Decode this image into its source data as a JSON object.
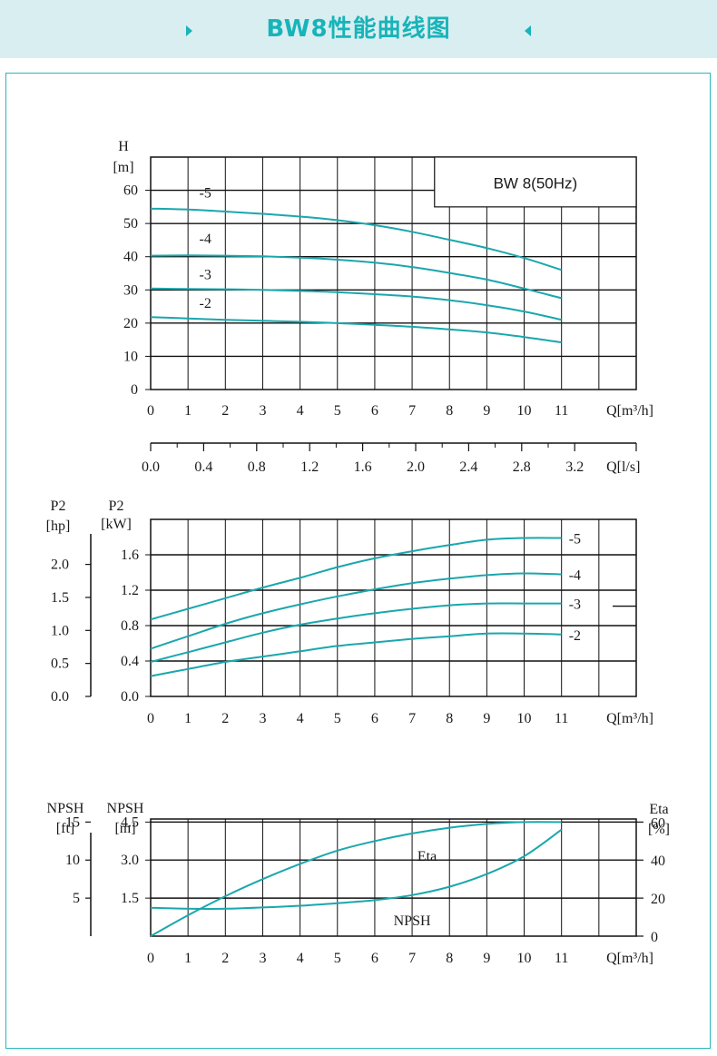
{
  "banner": {
    "title": "BW8性能曲线图"
  },
  "colors": {
    "banner_bg": "#d9eef1",
    "accent": "#17b4b9",
    "curve": "#1aa7ad",
    "frame": "#25b7bd"
  },
  "chart_data": [
    {
      "type": "line",
      "name_box": "BW 8(50Hz)",
      "ylabel": "H",
      "yunit": "[m]",
      "xlabel": "Q[m³/h]",
      "x_ticks": [
        0,
        1,
        2,
        3,
        4,
        5,
        6,
        7,
        8,
        9,
        10,
        11
      ],
      "y_ticks": [
        0,
        10,
        20,
        30,
        40,
        50,
        60
      ],
      "xlim": [
        0,
        13
      ],
      "ylim": [
        0,
        70
      ],
      "secondary_x": {
        "label": "Q[l/s]",
        "ticks": [
          "0.0",
          "0.4",
          "0.8",
          "1.2",
          "1.6",
          "2.0",
          "2.4",
          "2.8",
          "3.2"
        ]
      },
      "series": [
        {
          "name": "-5",
          "x": [
            0,
            1,
            2,
            3,
            4,
            5,
            6,
            7,
            8,
            9,
            10,
            11
          ],
          "y": [
            54.5,
            54.2,
            53.6,
            52.9,
            52.1,
            51.0,
            49.5,
            47.5,
            45.1,
            42.6,
            39.6,
            36.0
          ]
        },
        {
          "name": "-4",
          "x": [
            0,
            1,
            2,
            3,
            4,
            5,
            6,
            7,
            8,
            9,
            10,
            11
          ],
          "y": [
            40.3,
            40.4,
            40.3,
            40.1,
            39.7,
            39.1,
            38.2,
            36.9,
            35.1,
            33.1,
            30.4,
            27.5
          ]
        },
        {
          "name": "-3",
          "x": [
            0,
            1,
            2,
            3,
            4,
            5,
            6,
            7,
            8,
            9,
            10,
            11
          ],
          "y": [
            30.4,
            30.3,
            30.2,
            30.0,
            29.7,
            29.3,
            28.7,
            28.0,
            26.9,
            25.4,
            23.5,
            21.0
          ]
        },
        {
          "name": "-2",
          "x": [
            0,
            1,
            2,
            3,
            4,
            5,
            6,
            7,
            8,
            9,
            10,
            11
          ],
          "y": [
            21.8,
            21.4,
            21.0,
            20.7,
            20.4,
            20.0,
            19.5,
            18.9,
            18.1,
            17.2,
            15.8,
            14.2
          ]
        }
      ]
    },
    {
      "type": "line",
      "ylabel": "P2",
      "yunit": "[kW]",
      "ylabel2": "P2",
      "yunit2": "[hp]",
      "xlabel": "Q[m³/h]",
      "x_ticks": [
        0,
        1,
        2,
        3,
        4,
        5,
        6,
        7,
        8,
        9,
        10,
        11
      ],
      "y_ticks": [
        "0.0",
        "0.4",
        "0.8",
        "1.2",
        "1.6"
      ],
      "y2_ticks": [
        "0.0",
        "0.5",
        "1.0",
        "1.5",
        "2.0"
      ],
      "xlim": [
        0,
        13
      ],
      "ylim": [
        0,
        2.0
      ],
      "series": [
        {
          "name": "-5",
          "x": [
            0,
            1,
            2,
            3,
            4,
            5,
            6,
            7,
            8,
            9,
            10,
            11
          ],
          "y": [
            0.87,
            0.99,
            1.11,
            1.23,
            1.34,
            1.46,
            1.56,
            1.64,
            1.71,
            1.77,
            1.79,
            1.79
          ]
        },
        {
          "name": "-4",
          "x": [
            0,
            1,
            2,
            3,
            4,
            5,
            6,
            7,
            8,
            9,
            10,
            11
          ],
          "y": [
            0.54,
            0.68,
            0.82,
            0.94,
            1.04,
            1.13,
            1.21,
            1.28,
            1.33,
            1.37,
            1.39,
            1.38
          ]
        },
        {
          "name": "-3",
          "x": [
            0,
            1,
            2,
            3,
            4,
            5,
            6,
            7,
            8,
            9,
            10,
            11
          ],
          "y": [
            0.39,
            0.5,
            0.61,
            0.72,
            0.81,
            0.88,
            0.94,
            0.99,
            1.03,
            1.05,
            1.05,
            1.05
          ]
        },
        {
          "name": "-2",
          "x": [
            0,
            1,
            2,
            3,
            4,
            5,
            6,
            7,
            8,
            9,
            10,
            11
          ],
          "y": [
            0.23,
            0.31,
            0.39,
            0.45,
            0.51,
            0.57,
            0.61,
            0.65,
            0.68,
            0.71,
            0.71,
            0.7
          ]
        }
      ]
    },
    {
      "type": "line",
      "ylabel": "NPSH",
      "yunit": "[m]",
      "ylabel_ft": "NPSH",
      "yunit_ft": "[ft]",
      "ylabel_right": "Eta",
      "yunit_right": "[%]",
      "xlabel": "Q[m³/h]",
      "x_ticks": [
        0,
        1,
        2,
        3,
        4,
        5,
        6,
        7,
        8,
        9,
        10,
        11
      ],
      "y_ticks": [
        "1.5",
        "3.0",
        "4.5"
      ],
      "y_ft_ticks": [
        "5",
        "10",
        "15"
      ],
      "y_right_ticks": [
        "0",
        "20",
        "40",
        "60"
      ],
      "xlim": [
        0,
        13
      ],
      "ylim_right": [
        0,
        60
      ],
      "series": [
        {
          "name": "NPSH",
          "axis": "left",
          "x": [
            0,
            1,
            2,
            3,
            4,
            5,
            6,
            7,
            8,
            9,
            10,
            11
          ],
          "y": [
            1.12,
            1.08,
            1.08,
            1.13,
            1.2,
            1.3,
            1.42,
            1.62,
            1.95,
            2.45,
            3.15,
            4.2
          ]
        },
        {
          "name": "Eta",
          "axis": "right",
          "x": [
            0,
            1,
            2,
            3,
            4,
            5,
            6,
            7,
            8,
            9,
            10,
            11
          ],
          "y": [
            0,
            11,
            21,
            30,
            38,
            45,
            50,
            54,
            57,
            59,
            60,
            60
          ]
        }
      ]
    }
  ]
}
